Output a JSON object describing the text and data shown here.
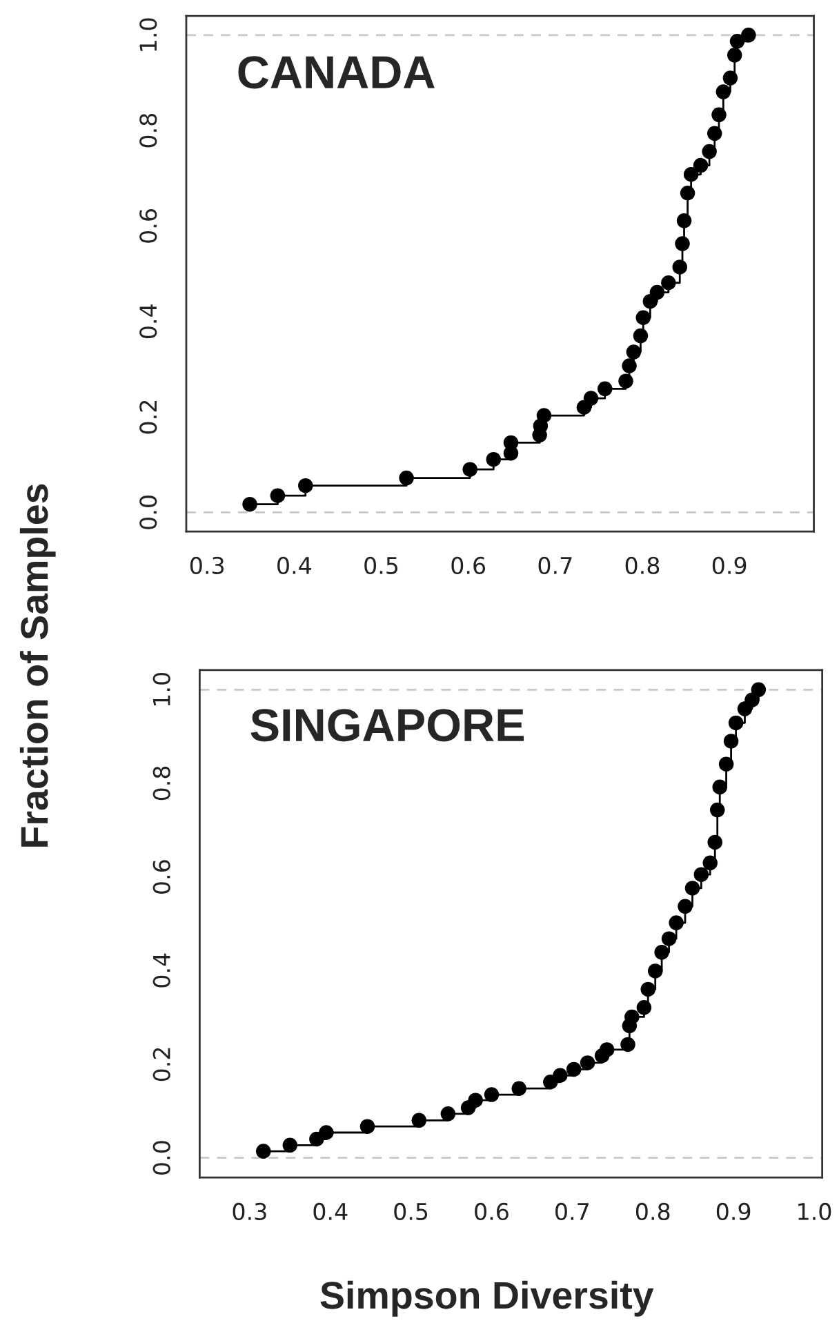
{
  "chart_data": [
    {
      "type": "step",
      "title": "CANADA",
      "ylabel": "Fraction of Samples",
      "marker": "circle",
      "grid": false,
      "tick_labels": "xy",
      "xlim": [
        0.276,
        0.997
      ],
      "ylim": [
        -0.04,
        1.04
      ],
      "xticks": [
        0.3,
        0.4,
        0.5,
        0.6,
        0.7,
        0.8,
        0.9
      ],
      "yticks": [
        {
          "value": 0,
          "label": "0.0"
        },
        {
          "value": 0.2,
          "label": "0.2"
        },
        {
          "value": 0.4,
          "label": "0.4"
        },
        {
          "value": 0.6,
          "label": "0.6"
        },
        {
          "value": 0.8,
          "label": "0.8"
        },
        {
          "value": 1,
          "label": "1.0"
        }
      ],
      "ref_lines": [
        {
          "axis": "y",
          "value": 0,
          "color": "#c8c8c8",
          "line_style": "dashed"
        },
        {
          "axis": "y",
          "value": 1,
          "color": "#c8c8c8",
          "line_style": "dashed"
        }
      ],
      "series": [
        {
          "color": "#000000",
          "x": [
            0.349,
            0.381,
            0.413,
            0.529,
            0.602,
            0.629,
            0.649,
            0.649,
            0.682,
            0.683,
            0.687,
            0.733,
            0.741,
            0.757,
            0.781,
            0.785,
            0.79,
            0.798,
            0.801,
            0.809,
            0.817,
            0.83,
            0.843,
            0.846,
            0.848,
            0.852,
            0.856,
            0.867,
            0.877,
            0.883,
            0.888,
            0.893,
            0.901,
            0.906,
            0.909,
            0.922
          ],
          "values": [
            0.017,
            0.035,
            0.056,
            0.072,
            0.09,
            0.111,
            0.124,
            0.146,
            0.162,
            0.181,
            0.203,
            0.22,
            0.239,
            0.259,
            0.275,
            0.307,
            0.336,
            0.37,
            0.408,
            0.442,
            0.461,
            0.481,
            0.514,
            0.563,
            0.611,
            0.669,
            0.708,
            0.727,
            0.756,
            0.794,
            0.833,
            0.881,
            0.91,
            0.958,
            0.987,
            1.0
          ]
        }
      ]
    },
    {
      "type": "step",
      "title": "SINGAPORE",
      "xlabel": "Simpson Diversity",
      "marker": "circle",
      "grid": false,
      "xlim": [
        0.238,
        1.01
      ],
      "ylim": [
        -0.042,
        1.042
      ],
      "xticks": [
        0.3,
        0.4,
        0.5,
        0.6,
        0.7,
        0.8,
        0.9,
        {
          "value": 1,
          "label": "1.0"
        }
      ],
      "yticks": [
        {
          "value": 0,
          "label": "0.0"
        },
        {
          "value": 0.2,
          "label": "0.2"
        },
        {
          "value": 0.4,
          "label": "0.4"
        },
        {
          "value": 0.6,
          "label": "0.6"
        },
        {
          "value": 0.8,
          "label": "0.8"
        },
        {
          "value": 1,
          "label": "1.0"
        }
      ],
      "ref_lines": [
        {
          "axis": "y",
          "value": 0,
          "color": "#c8c8c8",
          "line_style": "dashed"
        },
        {
          "axis": "y",
          "value": 1,
          "color": "#c8c8c8",
          "line_style": "dashed"
        }
      ],
      "series": [
        {
          "color": "#000000",
          "x": [
            0.317,
            0.35,
            0.383,
            0.395,
            0.446,
            0.51,
            0.546,
            0.571,
            0.58,
            0.6,
            0.634,
            0.673,
            0.685,
            0.702,
            0.719,
            0.737,
            0.743,
            0.769,
            0.771,
            0.774,
            0.789,
            0.794,
            0.803,
            0.811,
            0.82,
            0.829,
            0.84,
            0.849,
            0.86,
            0.871,
            0.877,
            0.88,
            0.883,
            0.891,
            0.897,
            0.903,
            0.914,
            0.923,
            0.931
          ],
          "values": [
            0.014,
            0.027,
            0.04,
            0.054,
            0.067,
            0.08,
            0.094,
            0.107,
            0.123,
            0.135,
            0.148,
            0.162,
            0.176,
            0.189,
            0.203,
            0.218,
            0.231,
            0.242,
            0.282,
            0.301,
            0.321,
            0.36,
            0.399,
            0.439,
            0.468,
            0.502,
            0.537,
            0.576,
            0.605,
            0.63,
            0.674,
            0.743,
            0.792,
            0.841,
            0.89,
            0.929,
            0.959,
            0.978,
            1.0
          ]
        }
      ]
    }
  ]
}
